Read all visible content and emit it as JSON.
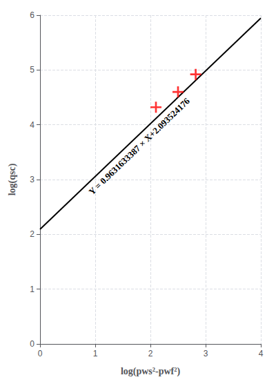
{
  "chart_data": {
    "type": "scatter",
    "xlabel": "log(pws²-pwf²)",
    "ylabel": "log(qsc)",
    "annotation": "Y = 0.9631633387 × X+2.093524176",
    "xlim": [
      0,
      4
    ],
    "xticks": [
      0,
      1,
      2,
      3,
      4
    ],
    "ylim": [
      0,
      6
    ],
    "yticks": [
      0,
      1,
      2,
      3,
      4,
      5,
      6
    ],
    "grid": true,
    "series": [
      {
        "type": "line",
        "color": "#000000",
        "x": [
          0,
          4
        ],
        "values": [
          2.093524176,
          5.9461775308
        ]
      },
      {
        "type": "scatter",
        "color": "#ff0000",
        "marker": "plus",
        "x": [
          2.1,
          2.5,
          2.82
        ],
        "values": [
          4.32,
          4.6,
          4.92
        ]
      }
    ]
  }
}
